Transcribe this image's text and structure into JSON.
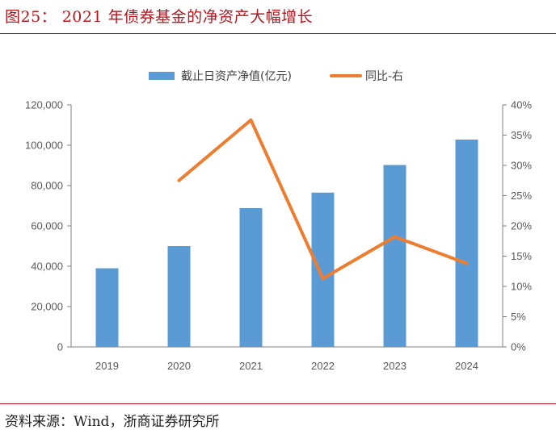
{
  "figure": {
    "title": "图25：  2021 年债券基金的净资产大幅增长",
    "source": "资料来源：Wind，浙商证券研究所"
  },
  "colors": {
    "bar": "#5b9bd5",
    "line": "#ed7d31",
    "title": "#b8141e"
  },
  "chart_data": {
    "type": "bar",
    "categories": [
      "2019",
      "2020",
      "2021",
      "2022",
      "2023",
      "2024"
    ],
    "series": [
      {
        "name": "截止日资产净值(亿元)",
        "type": "bar",
        "axis": "left",
        "values": [
          39000,
          50000,
          68800,
          76500,
          90200,
          102800
        ]
      },
      {
        "name": "同比-右",
        "type": "line",
        "axis": "right",
        "values": [
          null,
          27.5,
          37.5,
          11.3,
          18.2,
          13.8
        ]
      }
    ],
    "y_left": {
      "range": [
        0,
        120000
      ],
      "ticks": [
        "0",
        "20,000",
        "40,000",
        "60,000",
        "80,000",
        "100,000",
        "120,000"
      ]
    },
    "y_right": {
      "range": [
        0,
        40
      ],
      "ticks": [
        "0%",
        "5%",
        "10%",
        "15%",
        "20%",
        "25%",
        "30%",
        "35%",
        "40%"
      ]
    },
    "legend_position": "top-center",
    "grid": false
  }
}
